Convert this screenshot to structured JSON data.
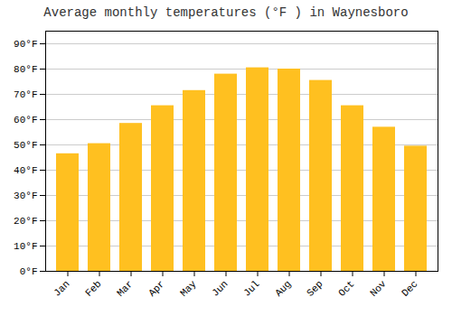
{
  "chart_data": {
    "type": "bar",
    "title": "Average monthly temperatures (°F ) in Waynesboro",
    "categories": [
      "Jan",
      "Feb",
      "Mar",
      "Apr",
      "May",
      "Jun",
      "Jul",
      "Aug",
      "Sep",
      "Oct",
      "Nov",
      "Dec"
    ],
    "values": [
      46.5,
      50.5,
      58.5,
      65.5,
      71.5,
      78,
      80.5,
      80,
      75.5,
      65.5,
      57,
      49.5
    ],
    "color": "#FFC020",
    "ylim": [
      0,
      95
    ],
    "yticks": [
      {
        "value": 0,
        "label": "0°F"
      },
      {
        "value": 10,
        "label": "10°F"
      },
      {
        "value": 20,
        "label": "20°F"
      },
      {
        "value": 30,
        "label": "30°F"
      },
      {
        "value": 40,
        "label": "40°F"
      },
      {
        "value": 50,
        "label": "50°F"
      },
      {
        "value": 60,
        "label": "60°F"
      },
      {
        "value": 70,
        "label": "70°F"
      },
      {
        "value": 80,
        "label": "80°F"
      },
      {
        "value": 90,
        "label": "90°F"
      }
    ],
    "grid": true
  }
}
